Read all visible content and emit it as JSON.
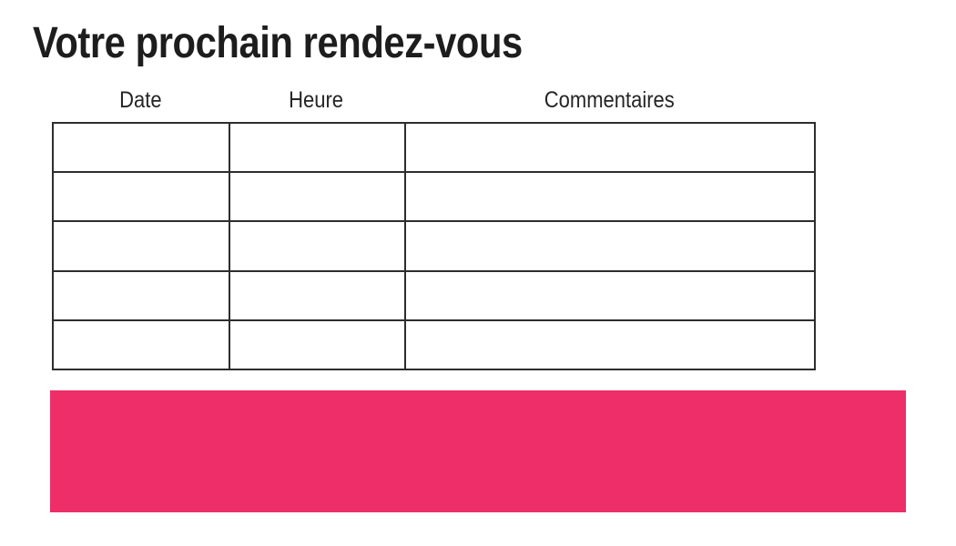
{
  "page": {
    "title": "Votre prochain rendez-vous"
  },
  "appointment_table": {
    "headers": [
      "Date",
      "Heure",
      "Commentaires"
    ],
    "rows": [
      [
        "",
        "",
        ""
      ],
      [
        "",
        "",
        ""
      ],
      [
        "",
        "",
        ""
      ],
      [
        "",
        "",
        ""
      ],
      [
        "",
        "",
        ""
      ]
    ]
  },
  "highlight_bar": {
    "color": "#ED2E68"
  }
}
